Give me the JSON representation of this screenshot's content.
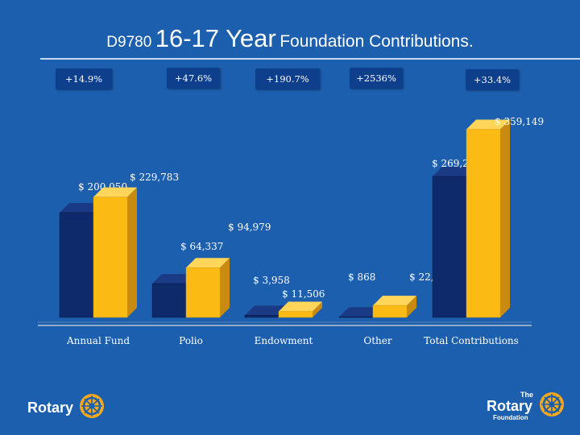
{
  "title": {
    "part1": "D9780",
    "part2": "16-17 Year",
    "part3": "Foundation Contributions."
  },
  "growth_labels": [
    "+14.9%",
    "+47.6%",
    "+190.7%",
    "+2536%",
    "+33.4%"
  ],
  "colors": {
    "background": "#1c5fae",
    "prev_year": "#0f2a6b",
    "curr_year": "#fbba14",
    "bar_side": "#c88a10",
    "label_box": "#0d3f8c"
  },
  "logos": {
    "left": "Rotary",
    "right_small": "The",
    "right": "Rotary",
    "right_sub": "Foundation"
  },
  "chart_data": {
    "type": "bar",
    "categories": [
      "Annual Fund",
      "Polio",
      "Endowment",
      "Other",
      "Total Contributions"
    ],
    "series": [
      {
        "values": [
          200050,
          64337,
          3958,
          868,
          269213
        ],
        "labels": [
          "$ 200,050",
          "$ 64,337",
          "$ 3,958",
          "$ 868",
          "$ 269,213"
        ]
      },
      {
        "values": [
          229783,
          94979,
          11506,
          22881,
          359149
        ],
        "labels": [
          "$ 229,783",
          "$ 94,979",
          "$ 11,506",
          "$ 22,881",
          "$ 359,149"
        ]
      }
    ],
    "ylim": [
      0,
      400000
    ],
    "legend": "none",
    "grid": false
  }
}
